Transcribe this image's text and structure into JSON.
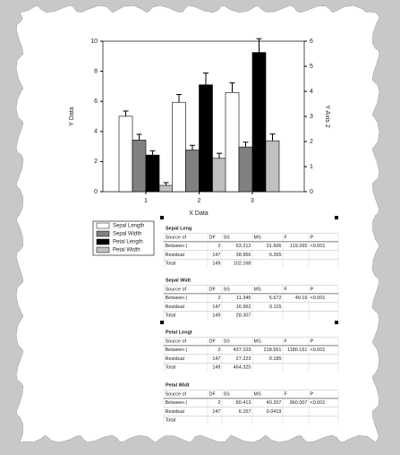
{
  "chart_data": {
    "type": "bar",
    "x_label": "X Data",
    "y_label": "Y Data",
    "y2_label": "Y Axis 2",
    "categories": [
      "1",
      "2",
      "3"
    ],
    "ylim": [
      0,
      10
    ],
    "yticks": [
      0,
      2,
      4,
      6,
      8,
      10
    ],
    "y2lim": [
      0,
      6
    ],
    "y2ticks": [
      0,
      1,
      2,
      3,
      4,
      5,
      6
    ],
    "series": [
      {
        "name": "Sepal Length",
        "color": "#ffffff",
        "values": [
          5.01,
          5.94,
          6.59
        ],
        "errors": [
          0.35,
          0.52,
          0.64
        ]
      },
      {
        "name": "Sepal Width",
        "color": "#808080",
        "values": [
          3.43,
          2.77,
          2.97
        ],
        "errors": [
          0.38,
          0.31,
          0.32
        ]
      },
      {
        "name": "Petal Length",
        "color": "#000000",
        "axis": "y2",
        "values": [
          1.46,
          4.26,
          5.55
        ],
        "errors": [
          0.17,
          0.47,
          0.55
        ]
      },
      {
        "name": "Petal Width",
        "color": "#c0c0c0",
        "axis": "y2",
        "values": [
          0.25,
          1.33,
          2.03
        ],
        "errors": [
          0.11,
          0.2,
          0.27
        ]
      }
    ]
  },
  "tables": [
    {
      "title": "Sepal Leng",
      "header": [
        "Source of",
        "DF",
        "SS",
        "MS",
        "F",
        "P"
      ],
      "rows": [
        [
          "Between (",
          "2",
          "63.212",
          "31.606",
          "119.265",
          "<0.001"
        ],
        [
          "Residual",
          "147",
          "38.956",
          "0.265",
          "",
          ""
        ],
        [
          "Total",
          "149",
          "102.168",
          "",
          "",
          ""
        ]
      ]
    },
    {
      "title": "Sepal Widt",
      "header": [
        "Source of",
        "DF",
        "SS",
        "MS",
        "F",
        "P"
      ],
      "rows": [
        [
          "Between (",
          "2",
          "11.345",
          "5.672",
          "49.16",
          "<0.001"
        ],
        [
          "Residual",
          "147",
          "16.962",
          "0.115",
          "",
          ""
        ],
        [
          "Total",
          "149",
          "28.307",
          "",
          "",
          ""
        ]
      ]
    },
    {
      "title": "Petal Lengt",
      "header": [
        "Source of",
        "DF",
        "SS",
        "MS",
        "F",
        "P"
      ],
      "rows": [
        [
          "Between (",
          "2",
          "437.103",
          "218.551",
          "1180.161",
          "<0.001"
        ],
        [
          "Residual",
          "147",
          "27.223",
          "0.185",
          "",
          ""
        ],
        [
          "Total",
          "149",
          "464.325",
          "",
          "",
          ""
        ]
      ]
    },
    {
      "title": "Petal Widt",
      "header": [
        "Source of",
        "DF",
        "SS",
        "MS",
        "F",
        "P"
      ],
      "rows": [
        [
          "Between (",
          "2",
          "80.413",
          "40.207",
          "960.007",
          "<0.001"
        ],
        [
          "Residual",
          "147",
          "6.157",
          "0.0419",
          "",
          ""
        ],
        [
          "Total",
          "",
          "",
          "",
          "",
          ""
        ]
      ]
    }
  ]
}
